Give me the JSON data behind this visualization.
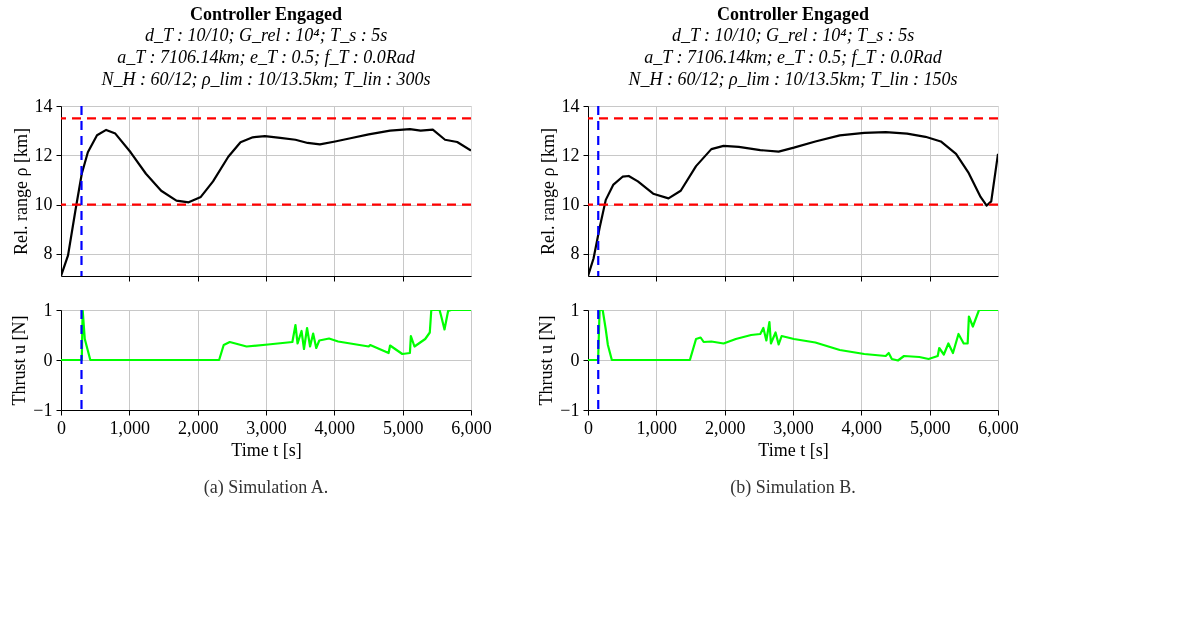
{
  "chart_data": [
    {
      "type": "line",
      "title": "Controller Engaged",
      "subtitle": "d_T : 10/10; G_rel : 10⁴; T_s : 5s\na_T : 7106.14km; e_T : 0.5; f_T : 0.0Rad\nN_H : 60/12; ρ_lim : 10/13.5km; T_lin : 300s",
      "ylabel": "Rel. range ρ [km]",
      "xlim": [
        0,
        6000
      ],
      "xticks": [
        1000,
        2000,
        3000,
        4000,
        5000
      ],
      "ylim": [
        7.1,
        14
      ],
      "yticks": [
        8,
        10,
        12,
        14
      ],
      "grid": true,
      "tick_labels": "y",
      "series": [
        {
          "color": "#000000",
          "x": [
            0,
            103,
            214,
            304,
            393,
            527,
            661,
            795,
            1019,
            1243,
            1466,
            1689,
            1868,
            2046,
            2225,
            2448,
            2627,
            2806,
            2984,
            3208,
            3431,
            3610,
            3789,
            4012,
            4236,
            4503,
            4816,
            5106,
            5263,
            5441,
            5620,
            5798,
            6000
          ],
          "values": [
            7.1,
            7.94,
            9.81,
            11.25,
            12.12,
            12.81,
            13.03,
            12.88,
            12.12,
            11.25,
            10.56,
            10.16,
            10.09,
            10.31,
            10.94,
            11.94,
            12.53,
            12.73,
            12.78,
            12.71,
            12.63,
            12.5,
            12.44,
            12.56,
            12.69,
            12.85,
            13.0,
            13.06,
            13.0,
            13.04,
            12.63,
            12.54,
            12.19
          ]
        }
      ],
      "ref_lines": [
        {
          "axis": "y",
          "value": 10,
          "color": "#ff0000",
          "line_style": "dashed"
        },
        {
          "axis": "y",
          "value": 13.5,
          "color": "#ff0000",
          "line_style": "dashed"
        },
        {
          "axis": "x",
          "value": 300,
          "color": "#0000ff",
          "line_style": "dashed"
        }
      ]
    },
    {
      "type": "line",
      "xlabel": "Time t [s]",
      "ylabel": "Thrust u [N]",
      "annotations": [
        "(a) Simulation A."
      ],
      "xlim": [
        0,
        6000
      ],
      "xticks": [
        0,
        {
          "value": 1000,
          "label": "1,000"
        },
        {
          "value": 2000,
          "label": "2,000"
        },
        {
          "value": 3000,
          "label": "3,000"
        },
        {
          "value": 4000,
          "label": "4,000"
        },
        {
          "value": 5000,
          "label": "5,000"
        },
        {
          "value": 6000,
          "label": "6,000"
        }
      ],
      "ylim": [
        -1,
        1
      ],
      "yticks": [
        -1,
        0,
        1
      ],
      "grid": true,
      "series": [
        {
          "color": "#00ff00",
          "x": [
            0,
            304,
            317,
            348,
            429,
            2314,
            2381,
            2470,
            2716,
            3029,
            3386,
            3431,
            3462,
            3520,
            3556,
            3601,
            3645,
            3690,
            3735,
            3780,
            3923,
            4056,
            4369,
            4503,
            4525,
            4794,
            4816,
            4995,
            5106,
            5120,
            5173,
            5330,
            5397,
            5419,
            5540,
            5567,
            5612,
            5665,
            5710,
            6000
          ],
          "values": [
            0,
            0,
            1,
            0.42,
            0,
            0,
            0.3,
            0.36,
            0.27,
            0.31,
            0.36,
            0.7,
            0.33,
            0.58,
            0.22,
            0.64,
            0.27,
            0.53,
            0.24,
            0.39,
            0.43,
            0.37,
            0.3,
            0.27,
            0.3,
            0.14,
            0.29,
            0.12,
            0.14,
            0.48,
            0.27,
            0.42,
            0.55,
            1,
            1,
            0.86,
            0.61,
            0.98,
            1,
            1
          ]
        }
      ],
      "ref_lines": [
        {
          "axis": "x",
          "value": 300,
          "color": "#0000ff",
          "line_style": "dashed"
        }
      ]
    },
    {
      "type": "line",
      "title": "Controller Engaged",
      "subtitle": "d_T : 10/10; G_rel : 10⁴; T_s : 5s\na_T : 7106.14km; e_T : 0.5; f_T : 0.0Rad\nN_H : 60/12; ρ_lim : 10/13.5km; T_lin : 150s",
      "ylabel": "Rel. range ρ [km]",
      "xlim": [
        0,
        6000
      ],
      "xticks": [
        1000,
        2000,
        3000,
        4000,
        5000
      ],
      "ylim": [
        7.1,
        14
      ],
      "yticks": [
        8,
        10,
        12,
        14
      ],
      "grid": true,
      "tick_labels": "y",
      "series": [
        {
          "color": "#000000",
          "x": [
            0,
            81,
            170,
            260,
            372,
            506,
            596,
            730,
            954,
            1178,
            1357,
            1581,
            1805,
            1984,
            2207,
            2521,
            2790,
            3013,
            3327,
            3685,
            4043,
            4357,
            4670,
            4939,
            5163,
            5386,
            5565,
            5745,
            5834,
            5901,
            6000
          ],
          "values": [
            7.1,
            7.81,
            9.06,
            10.19,
            10.81,
            11.13,
            11.16,
            10.94,
            10.44,
            10.25,
            10.56,
            11.56,
            12.25,
            12.38,
            12.34,
            12.21,
            12.15,
            12.31,
            12.56,
            12.81,
            12.91,
            12.94,
            12.88,
            12.75,
            12.56,
            12.06,
            11.31,
            10.31,
            9.96,
            10.13,
            12.06
          ]
        }
      ],
      "ref_lines": [
        {
          "axis": "y",
          "value": 10,
          "color": "#ff0000",
          "line_style": "dashed"
        },
        {
          "axis": "y",
          "value": 13.5,
          "color": "#ff0000",
          "line_style": "dashed"
        },
        {
          "axis": "x",
          "value": 150,
          "color": "#0000ff",
          "line_style": "dashed"
        }
      ]
    },
    {
      "type": "line",
      "xlabel": "Time t [s]",
      "ylabel": "Thrust u [N]",
      "annotations": [
        "(b) Simulation B."
      ],
      "xlim": [
        0,
        6000
      ],
      "xticks": [
        0,
        {
          "value": 1000,
          "label": "1,000"
        },
        {
          "value": 2000,
          "label": "2,000"
        },
        {
          "value": 3000,
          "label": "3,000"
        },
        {
          "value": 4000,
          "label": "4,000"
        },
        {
          "value": 5000,
          "label": "5,000"
        },
        {
          "value": 6000,
          "label": "6,000"
        }
      ],
      "ylim": [
        -1,
        1
      ],
      "yticks": [
        -1,
        0,
        1
      ],
      "grid": true,
      "series": [
        {
          "color": "#00ff00",
          "x": [
            0,
            148,
            170,
            215,
            260,
            291,
            349,
            1491,
            1581,
            1648,
            1693,
            1805,
            1984,
            2163,
            2387,
            2521,
            2566,
            2610,
            2655,
            2677,
            2745,
            2790,
            2834,
            3013,
            3327,
            3685,
            4043,
            4357,
            4401,
            4446,
            4536,
            4625,
            4849,
            4984,
            5118,
            5140,
            5207,
            5274,
            5341,
            5422,
            5498,
            5556,
            5574,
            5632,
            5722,
            6000
          ],
          "values": [
            0,
            0,
            1,
            1,
            0.61,
            0.3,
            0,
            0,
            0.42,
            0.45,
            0.36,
            0.37,
            0.33,
            0.42,
            0.5,
            0.52,
            0.64,
            0.39,
            0.76,
            0.33,
            0.55,
            0.31,
            0.48,
            0.42,
            0.35,
            0.2,
            0.12,
            0.08,
            0.14,
            0.02,
            -0.01,
            0.08,
            0.06,
            0.02,
            0.08,
            0.24,
            0.11,
            0.33,
            0.14,
            0.52,
            0.33,
            0.33,
            0.87,
            0.67,
            1,
            1
          ]
        }
      ],
      "ref_lines": [
        {
          "axis": "x",
          "value": 150,
          "color": "#0000ff",
          "line_style": "dashed"
        }
      ]
    }
  ]
}
